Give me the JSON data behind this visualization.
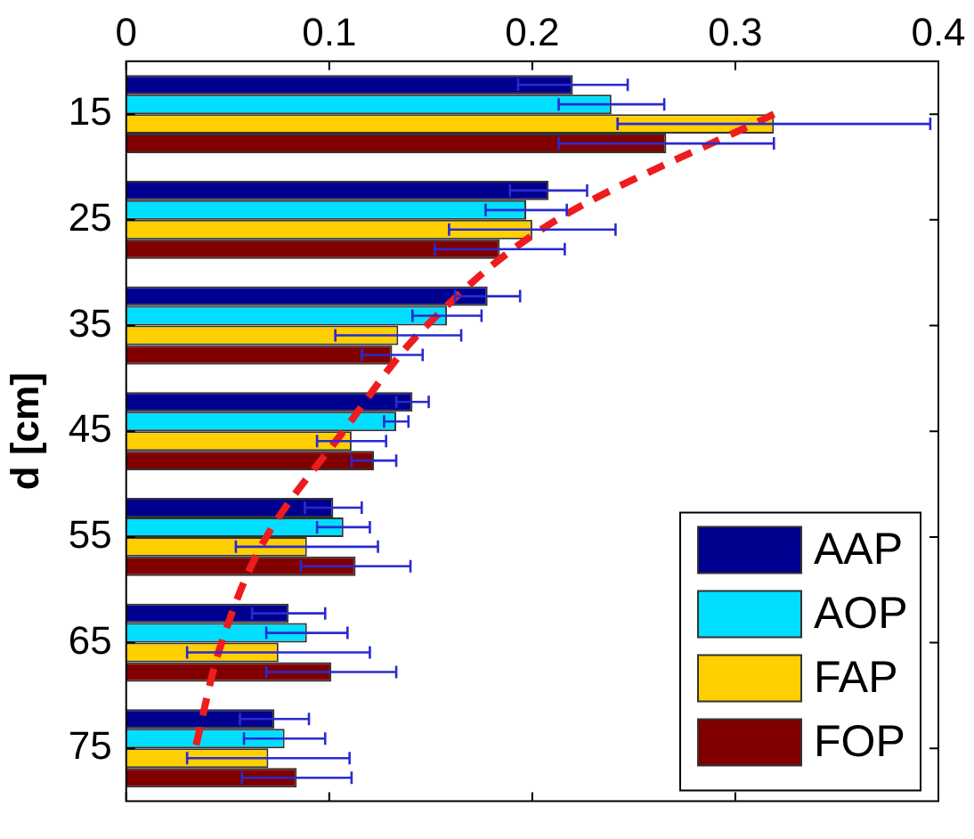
{
  "chart_data": {
    "type": "bar",
    "orientation": "horizontal",
    "ylabel": "d [cm]",
    "categories": [
      "15",
      "25",
      "35",
      "45",
      "55",
      "65",
      "75"
    ],
    "xlim": [
      0,
      0.4
    ],
    "xticks": [
      0,
      0.1,
      0.2,
      0.3,
      0.4
    ],
    "grid": false,
    "legend": "bottom right",
    "series": [
      {
        "name": "AAP",
        "color": "#00008f",
        "values": [
          0.22,
          0.208,
          0.178,
          0.141,
          0.102,
          0.08,
          0.073
        ],
        "errors": [
          0.027,
          0.019,
          0.016,
          0.008,
          0.014,
          0.018,
          0.017
        ]
      },
      {
        "name": "AOP",
        "color": "#00dfff",
        "values": [
          0.239,
          0.197,
          0.158,
          0.133,
          0.107,
          0.089,
          0.078
        ],
        "errors": [
          0.026,
          0.02,
          0.017,
          0.006,
          0.013,
          0.02,
          0.02
        ]
      },
      {
        "name": "FAP",
        "color": "#ffcf00",
        "values": [
          0.319,
          0.2,
          0.134,
          0.111,
          0.089,
          0.075,
          0.07
        ],
        "errors": [
          0.077,
          0.041,
          0.031,
          0.017,
          0.035,
          0.045,
          0.04
        ]
      },
      {
        "name": "FOP",
        "color": "#800000",
        "values": [
          0.266,
          0.184,
          0.131,
          0.122,
          0.113,
          0.101,
          0.084
        ],
        "errors": [
          0.053,
          0.032,
          0.015,
          0.011,
          0.027,
          0.032,
          0.027
        ]
      },
      {
        "type": "line",
        "color": "#ee1c1c",
        "line_style": "dashed",
        "marker": "none",
        "values": [
          0.319,
          0.212,
          0.148,
          0.107,
          0.069,
          0.047,
          0.034
        ]
      }
    ]
  }
}
